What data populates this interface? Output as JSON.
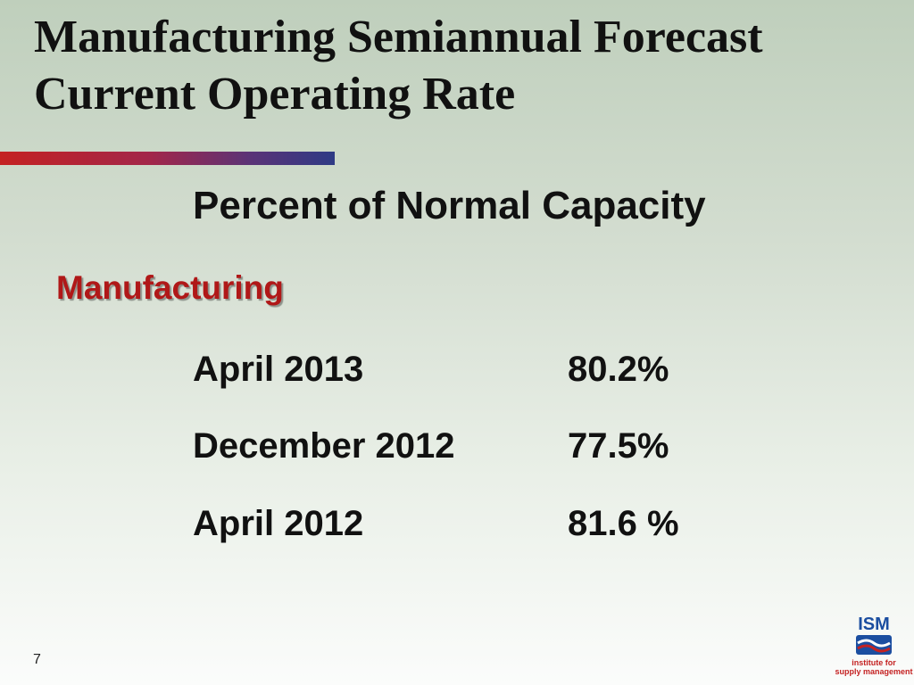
{
  "title": {
    "line1": "Manufacturing Semiannual Forecast",
    "line2": "Current Operating Rate"
  },
  "subtitle": "Percent of Normal Capacity",
  "section": "Manufacturing",
  "rows": [
    {
      "period": "April 2013",
      "value": "80.2%"
    },
    {
      "period": "December 2012",
      "value": "77.5%"
    },
    {
      "period": "April 2012",
      "value": "81.6 %"
    }
  ],
  "slide_number": "7",
  "logo": {
    "mark": "ISM",
    "text_line1": "institute for",
    "text_line2": "supply management"
  },
  "colors": {
    "accent_red": "#b01818",
    "logo_blue": "#1b4ea0"
  }
}
